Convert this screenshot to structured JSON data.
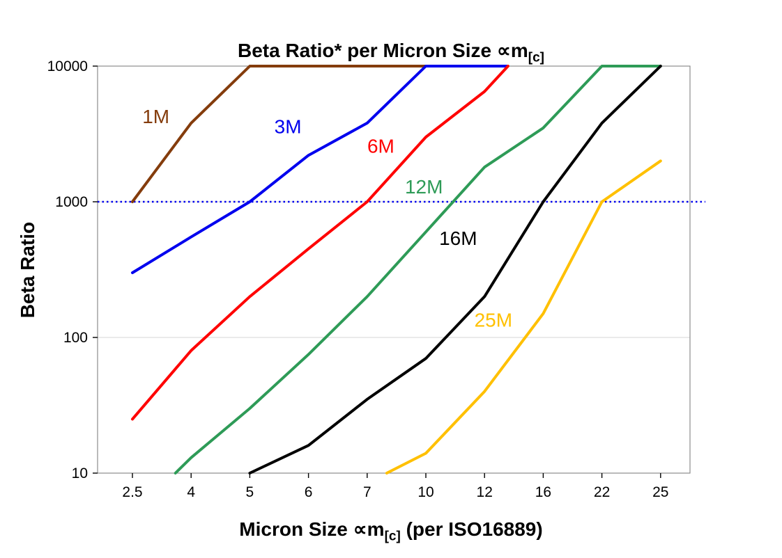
{
  "title": {
    "main": "Beta Ratio* per Micron Size ",
    "symbol": "∝m",
    "sub": "[c]"
  },
  "x_axis": {
    "label_pre": "Micron Size ",
    "label_symbol": "∝m",
    "label_sub": "[c]",
    "label_post": " (per ISO16889)",
    "tick_labels": [
      "2.5",
      "4",
      "5",
      "6",
      "7",
      "10",
      "12",
      "16",
      "22",
      "25"
    ]
  },
  "y_axis": {
    "label": "Beta Ratio",
    "tick_labels": [
      "10",
      "100",
      "1000",
      "10000"
    ]
  },
  "chart_data": {
    "type": "line",
    "title": "Beta Ratio* per Micron Size ∝m[c]",
    "xlabel": "Micron Size ∝m[c] (per ISO16889)",
    "ylabel": "Beta Ratio",
    "x_scale": "categorical",
    "y_scale": "log",
    "ylim": [
      10,
      10000
    ],
    "grid": "horizontal-major",
    "legend_position": "inline-labels",
    "categories": [
      2.5,
      4,
      5,
      6,
      7,
      10,
      12,
      16,
      22,
      25
    ],
    "y_ticks": [
      10,
      100,
      1000,
      10000
    ],
    "reference_line": {
      "y": 1000,
      "style": "dotted",
      "color": "#0000EE"
    },
    "series": [
      {
        "name": "1M",
        "color": "#843C0C",
        "label_pos": {
          "x": 3.1,
          "y": 3800
        },
        "points": [
          [
            2.5,
            1000
          ],
          [
            4,
            3800
          ],
          [
            5,
            10000
          ],
          [
            7,
            10000
          ],
          [
            10,
            10000
          ]
        ]
      },
      {
        "name": "3M",
        "color": "#0000EE",
        "label_pos": {
          "x": 5.65,
          "y": 3200
        },
        "points": [
          [
            2.5,
            300
          ],
          [
            4,
            550
          ],
          [
            5,
            1000
          ],
          [
            6,
            2200
          ],
          [
            7,
            3800
          ],
          [
            10,
            10000
          ],
          [
            13.5,
            10000
          ]
        ]
      },
      {
        "name": "6M",
        "color": "#FF0000",
        "label_pos": {
          "x": 7.7,
          "y": 2300
        },
        "points": [
          [
            2.5,
            25
          ],
          [
            4,
            80
          ],
          [
            5,
            200
          ],
          [
            6,
            450
          ],
          [
            7,
            1000
          ],
          [
            10,
            3000
          ],
          [
            12,
            6500
          ],
          [
            13.6,
            10000
          ]
        ]
      },
      {
        "name": "12M",
        "color": "#2E9B57",
        "label_pos": {
          "x": 9.9,
          "y": 1150
        },
        "points": [
          [
            3.6,
            10
          ],
          [
            4,
            13
          ],
          [
            5,
            30
          ],
          [
            6,
            75
          ],
          [
            7,
            200
          ],
          [
            10,
            600
          ],
          [
            12,
            1800
          ],
          [
            16,
            3500
          ],
          [
            22,
            10000
          ],
          [
            25,
            10000
          ]
        ]
      },
      {
        "name": "16M",
        "color": "#000000",
        "label_pos": {
          "x": 11.1,
          "y": 480
        },
        "points": [
          [
            5,
            10
          ],
          [
            6,
            16
          ],
          [
            7,
            35
          ],
          [
            10,
            70
          ],
          [
            12,
            200
          ],
          [
            16,
            1000
          ],
          [
            22,
            3800
          ],
          [
            25,
            10000
          ]
        ]
      },
      {
        "name": "25M",
        "color": "#FFC000",
        "label_pos": {
          "x": 12.6,
          "y": 120
        },
        "points": [
          [
            8,
            10
          ],
          [
            10,
            14
          ],
          [
            12,
            40
          ],
          [
            16,
            150
          ],
          [
            22,
            1000
          ],
          [
            25,
            2000
          ]
        ]
      }
    ]
  }
}
